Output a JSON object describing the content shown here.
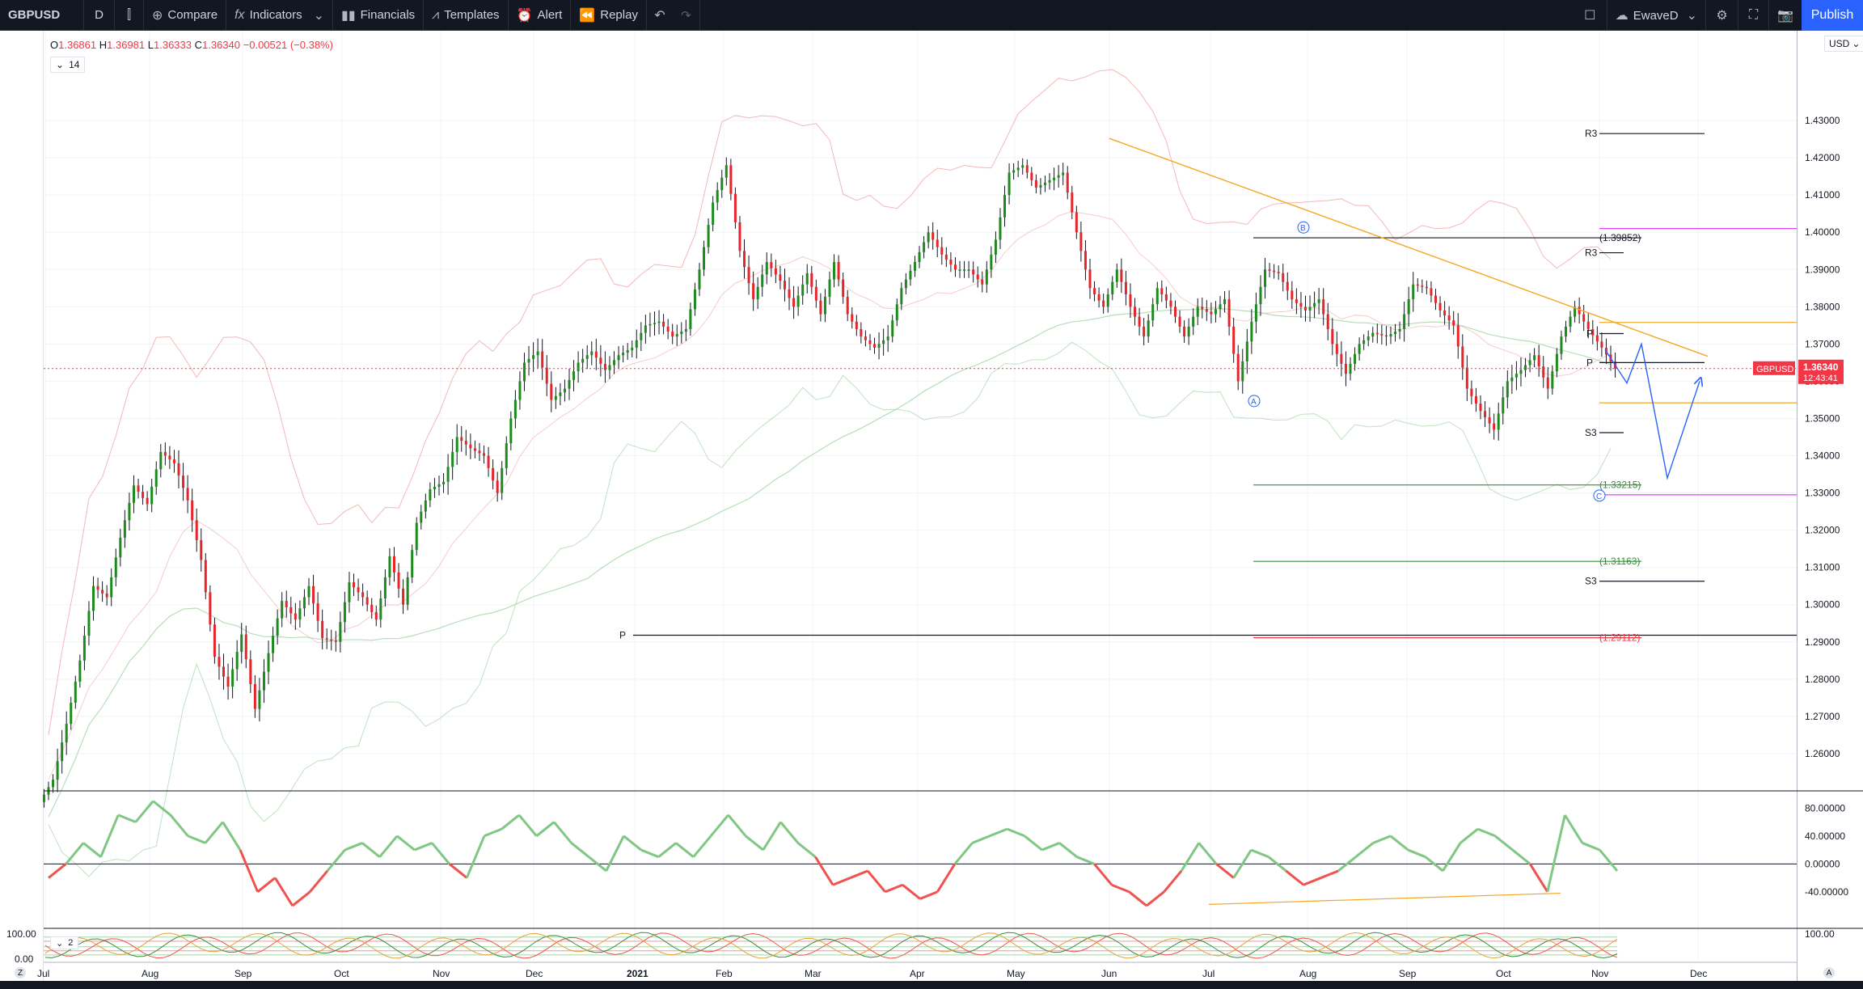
{
  "toolbar": {
    "symbol": "GBPUSD",
    "interval": "D",
    "compare": "Compare",
    "indicators": "Indicators",
    "financials": "Financials",
    "templates": "Templates",
    "alert": "Alert",
    "replay": "Replay",
    "account": "EwaveD",
    "publish": "Publish"
  },
  "legend": {
    "o": "1.36861",
    "h": "1.36981",
    "l": "1.36333",
    "c": "1.36340",
    "chg": "−0.00521 (−0.38%)",
    "length": "14"
  },
  "pane3_count": "2",
  "currency": "USD",
  "price_labels": [
    "1.43000",
    "1.42000",
    "1.41000",
    "1.40000",
    "1.39000",
    "1.38000",
    "1.37000",
    "1.36000",
    "1.35000",
    "1.34000",
    "1.33000",
    "1.32000",
    "1.31000",
    "1.30000",
    "1.29000",
    "1.28000",
    "1.27000",
    "1.26000"
  ],
  "osc_labels": [
    "80.00000",
    "40.00000",
    "0.00000",
    "-40.00000"
  ],
  "pane3_labels": [
    "100.00",
    "0.00",
    "100.00"
  ],
  "time_labels": [
    "Jul",
    "Aug",
    "Sep",
    "Oct",
    "Nov",
    "Dec",
    "2021",
    "Feb",
    "Mar",
    "Apr",
    "May",
    "Jun",
    "Jul",
    "Aug",
    "Sep",
    "Oct",
    "Nov",
    "Dec"
  ],
  "current": {
    "symbol": "GBPUSD",
    "price": "1.36340",
    "countdown": "12:43:41"
  },
  "pivot_labels": {
    "r3a": "R3",
    "r3b": "R3",
    "p1": "P",
    "p2": "P",
    "p3": "P",
    "s3a": "S3",
    "s3b": "S3"
  },
  "fib_labels": {
    "f1": "(1.39852)",
    "f2": "(1.33215)",
    "f3": "(1.31163)",
    "f4": "(1.29112)"
  },
  "waves": {
    "a": "A",
    "b": "B",
    "c": "C"
  },
  "scale_chips": {
    "left": "Z",
    "right": "A"
  },
  "chart_data": {
    "type": "candlestick",
    "symbol": "GBPUSD",
    "timeframe": "D",
    "ylim": [
      1.25,
      1.445
    ],
    "close": [
      1.253,
      1.268,
      1.285,
      1.305,
      1.302,
      1.318,
      1.332,
      1.327,
      1.341,
      1.338,
      1.328,
      1.312,
      1.286,
      1.278,
      1.292,
      1.272,
      1.287,
      1.301,
      1.296,
      1.305,
      1.291,
      1.29,
      1.306,
      1.302,
      1.296,
      1.313,
      1.3,
      1.322,
      1.331,
      1.333,
      1.345,
      1.342,
      1.34,
      1.33,
      1.35,
      1.365,
      1.368,
      1.355,
      1.358,
      1.365,
      1.368,
      1.363,
      1.367,
      1.369,
      1.375,
      1.376,
      1.372,
      1.374,
      1.39,
      1.408,
      1.418,
      1.395,
      1.382,
      1.392,
      1.387,
      1.38,
      1.389,
      1.378,
      1.392,
      1.378,
      1.372,
      1.369,
      1.372,
      1.385,
      1.392,
      1.4,
      1.394,
      1.39,
      1.39,
      1.386,
      1.398,
      1.416,
      1.418,
      1.412,
      1.414,
      1.416,
      1.4,
      1.385,
      1.38,
      1.39,
      1.38,
      1.372,
      1.385,
      1.38,
      1.372,
      1.38,
      1.378,
      1.382,
      1.36,
      1.376,
      1.39,
      1.389,
      1.382,
      1.379,
      1.382,
      1.37,
      1.362,
      1.37,
      1.373,
      1.372,
      1.374,
      1.386,
      1.385,
      1.379,
      1.375,
      1.358,
      1.352,
      1.347,
      1.36,
      1.363,
      1.367,
      1.358,
      1.372,
      1.38,
      1.374,
      1.369,
      1.3634
    ]
  }
}
